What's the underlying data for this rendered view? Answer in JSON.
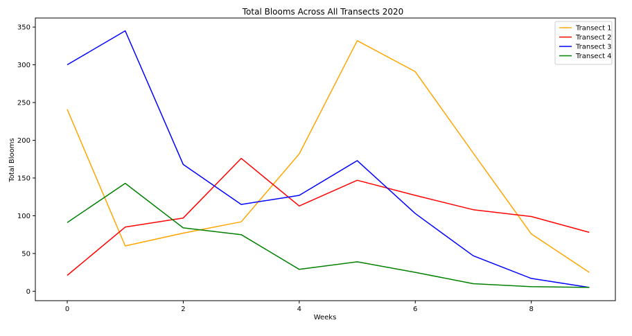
{
  "chart_data": {
    "type": "line",
    "title": "Total Blooms Across All Transects 2020",
    "xlabel": "Weeks",
    "ylabel": "Total Blooms",
    "x": [
      0,
      1,
      2,
      3,
      4,
      5,
      6,
      7,
      8,
      9
    ],
    "xlim": [
      -0.55,
      9.45
    ],
    "ylim": [
      -12.5,
      362
    ],
    "xticks": [
      0,
      2,
      4,
      6,
      8
    ],
    "yticks": [
      0,
      50,
      100,
      150,
      200,
      250,
      300,
      350
    ],
    "grid": false,
    "legend_position": "top-right",
    "series": [
      {
        "name": "Transect 1",
        "color": "#ffa500",
        "values": [
          241,
          60,
          77,
          92,
          182,
          332,
          291,
          183,
          76,
          25
        ]
      },
      {
        "name": "Transect 2",
        "color": "#ff0000",
        "values": [
          21,
          85,
          97,
          176,
          113,
          147,
          127,
          108,
          99,
          78
        ]
      },
      {
        "name": "Transect 3",
        "color": "#0000ff",
        "values": [
          300,
          345,
          168,
          115,
          127,
          173,
          103,
          47,
          17,
          5
        ]
      },
      {
        "name": "Transect 4",
        "color": "#008000",
        "values": [
          91,
          143,
          84,
          75,
          29,
          39,
          25,
          10,
          6,
          5
        ]
      }
    ]
  }
}
